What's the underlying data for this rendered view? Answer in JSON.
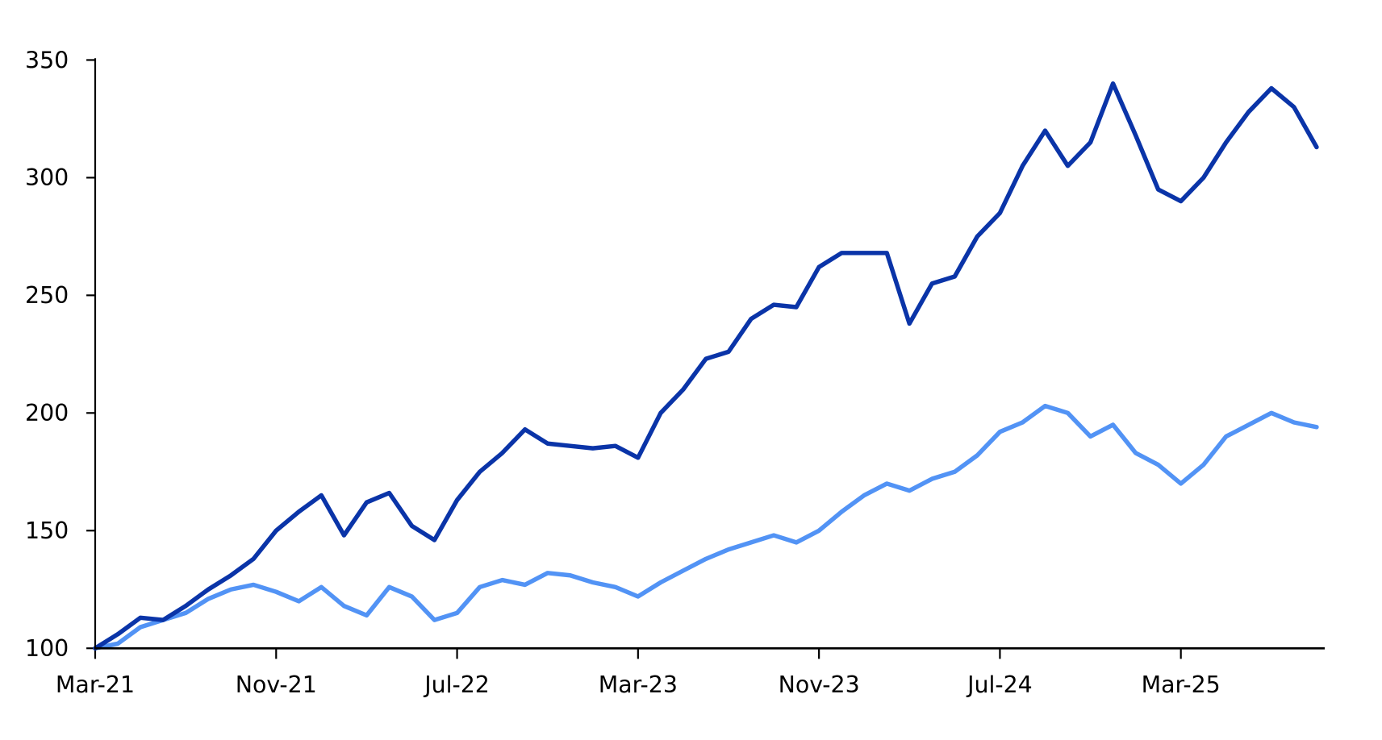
{
  "chart_data": {
    "type": "line",
    "title": "",
    "xlabel": "",
    "ylabel": "",
    "ylim": [
      100,
      350
    ],
    "yticks": [
      100,
      150,
      200,
      250,
      300,
      350
    ],
    "xticks": [
      {
        "x": "2021-03",
        "label": "Mar-21"
      },
      {
        "x": "2021-11",
        "label": "Nov-21"
      },
      {
        "x": "2022-07",
        "label": "Jul-22"
      },
      {
        "x": "2023-03",
        "label": "Mar-23"
      },
      {
        "x": "2023-11",
        "label": "Nov-23"
      },
      {
        "x": "2024-07",
        "label": "Jul-24"
      },
      {
        "x": "2025-03",
        "label": "Mar-25"
      }
    ],
    "xlim": [
      "2021-03",
      "2025-09"
    ],
    "grid": false,
    "legend": "none",
    "x": [
      "2021-03",
      "2021-04",
      "2021-05",
      "2021-06",
      "2021-07",
      "2021-08",
      "2021-09",
      "2021-10",
      "2021-11",
      "2021-12",
      "2022-01",
      "2022-02",
      "2022-03",
      "2022-04",
      "2022-05",
      "2022-06",
      "2022-07",
      "2022-08",
      "2022-09",
      "2022-10",
      "2022-11",
      "2022-12",
      "2023-01",
      "2023-02",
      "2023-03",
      "2023-04",
      "2023-05",
      "2023-06",
      "2023-07",
      "2023-08",
      "2023-09",
      "2023-10",
      "2023-11",
      "2023-12",
      "2024-01",
      "2024-02",
      "2024-03",
      "2024-04",
      "2024-05",
      "2024-06",
      "2024-07",
      "2024-08",
      "2024-09",
      "2024-10",
      "2024-11",
      "2024-12",
      "2025-01",
      "2025-02",
      "2025-03",
      "2025-04",
      "2025-05",
      "2025-06",
      "2025-07",
      "2025-08",
      "2025-09"
    ],
    "series": [
      {
        "color": "#0a34a8",
        "values": [
          100,
          106,
          113,
          112,
          118,
          125,
          131,
          138,
          150,
          158,
          165,
          148,
          162,
          166,
          152,
          146,
          163,
          175,
          183,
          193,
          187,
          186,
          185,
          186,
          181,
          200,
          210,
          223,
          226,
          240,
          246,
          245,
          262,
          268,
          268,
          268,
          238,
          255,
          258,
          275,
          285,
          305,
          320,
          305,
          315,
          340,
          318,
          295,
          290,
          300,
          315,
          328,
          338,
          330,
          313
        ]
      },
      {
        "color": "#5293f5",
        "values": [
          100,
          102,
          109,
          112,
          115,
          121,
          125,
          127,
          124,
          120,
          126,
          118,
          114,
          126,
          122,
          112,
          115,
          126,
          129,
          127,
          132,
          131,
          128,
          126,
          122,
          128,
          133,
          138,
          142,
          145,
          148,
          145,
          150,
          158,
          165,
          170,
          167,
          172,
          175,
          182,
          192,
          196,
          203,
          200,
          190,
          195,
          183,
          178,
          170,
          178,
          190,
          195,
          200,
          196,
          194
        ]
      }
    ]
  }
}
